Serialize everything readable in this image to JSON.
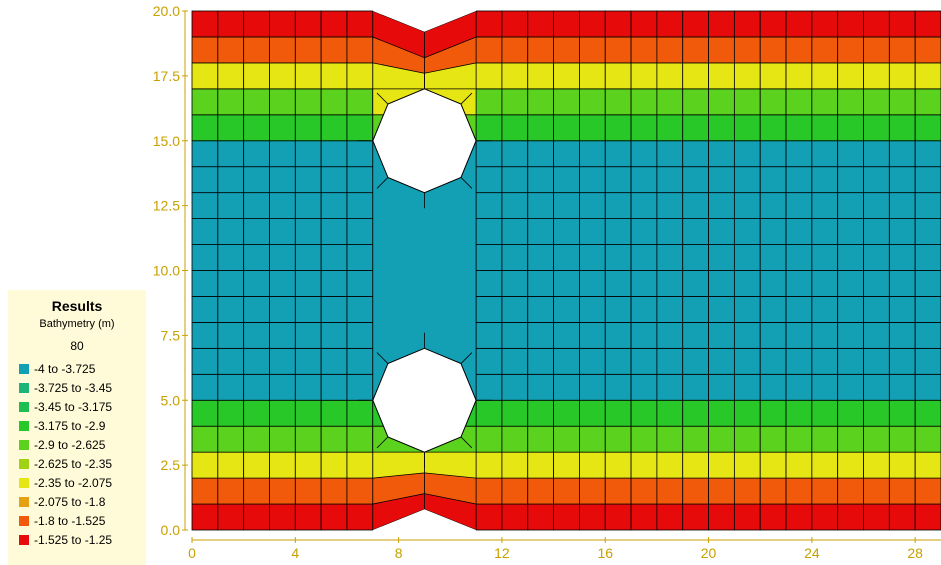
{
  "chart_data": {
    "type": "mesh-contour",
    "x_ticks": [
      "0",
      "4",
      "8",
      "12",
      "16",
      "20",
      "24",
      "28"
    ],
    "y_ticks": [
      "0.0",
      "2.5",
      "5.0",
      "7.5",
      "10.0",
      "12.5",
      "15.0",
      "17.5",
      "20.0"
    ],
    "xlim": [
      0,
      29
    ],
    "ylim": [
      0,
      20
    ],
    "obstacles": [
      {
        "cx": 9,
        "cy": 15,
        "r": 2
      },
      {
        "cx": 9,
        "cy": 5,
        "r": 2
      }
    ],
    "bands": [
      {
        "y": [
          0,
          1
        ],
        "class": 9
      },
      {
        "y": [
          1,
          2
        ],
        "class": 8
      },
      {
        "y": [
          2,
          3
        ],
        "class": 6
      },
      {
        "y": [
          3,
          4
        ],
        "class": 4
      },
      {
        "y": [
          4,
          5
        ],
        "class": 3
      },
      {
        "y": [
          5,
          15
        ],
        "class": 0
      },
      {
        "y": [
          15,
          16
        ],
        "class": 3
      },
      {
        "y": [
          16,
          17
        ],
        "class": 4
      },
      {
        "y": [
          17,
          18
        ],
        "class": 6
      },
      {
        "y": [
          18,
          19
        ],
        "class": 8
      },
      {
        "y": [
          19,
          20
        ],
        "class": 9
      }
    ],
    "axis_color": "#c8a000"
  },
  "legend": {
    "title": "Results",
    "subtitle": "Bathymetry (m)",
    "step": "80",
    "items": [
      {
        "label": "-4 to -3.725",
        "color": "#14a0b4"
      },
      {
        "label": "-3.725 to -3.45",
        "color": "#1eb478"
      },
      {
        "label": "-3.45 to -3.175",
        "color": "#1ebe50"
      },
      {
        "label": "-3.175 to -2.9",
        "color": "#28c828"
      },
      {
        "label": "-2.9 to -2.625",
        "color": "#5ad21e"
      },
      {
        "label": "-2.625 to -2.35",
        "color": "#a0d214"
      },
      {
        "label": "-2.35 to -2.075",
        "color": "#e6e614"
      },
      {
        "label": "-2.075 to -1.8",
        "color": "#e6a014"
      },
      {
        "label": "-1.8 to -1.525",
        "color": "#f05a0a"
      },
      {
        "label": "-1.525 to -1.25",
        "color": "#e60a0a"
      }
    ]
  }
}
